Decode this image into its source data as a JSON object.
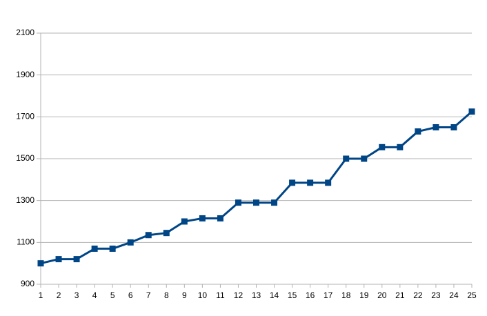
{
  "chart_data": {
    "type": "line",
    "x": [
      1,
      2,
      3,
      4,
      5,
      6,
      7,
      8,
      9,
      10,
      11,
      12,
      13,
      14,
      15,
      16,
      17,
      18,
      19,
      20,
      21,
      22,
      23,
      24,
      25
    ],
    "series": [
      {
        "color": "#004586",
        "values": [
          1000,
          1020,
          1020,
          1070,
          1070,
          1100,
          1135,
          1145,
          1200,
          1215,
          1215,
          1290,
          1290,
          1290,
          1385,
          1385,
          1385,
          1500,
          1500,
          1555,
          1555,
          1630,
          1650,
          1650,
          1725
        ]
      }
    ],
    "xlim": [
      1,
      25
    ],
    "xticks": [
      1,
      2,
      3,
      4,
      5,
      6,
      7,
      8,
      9,
      10,
      11,
      12,
      13,
      14,
      15,
      16,
      17,
      18,
      19,
      20,
      21,
      22,
      23,
      24,
      25
    ],
    "ylim": [
      900,
      2100
    ],
    "yticks": [
      900,
      1100,
      1300,
      1500,
      1700,
      1900,
      2100
    ],
    "grid": true,
    "markers": "square"
  }
}
